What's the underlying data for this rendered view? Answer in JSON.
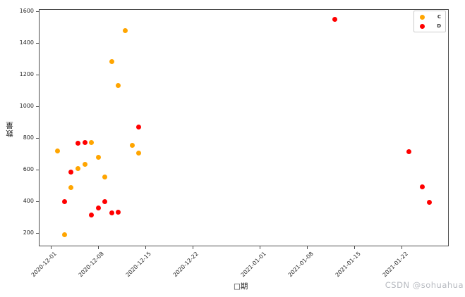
{
  "watermark": "CSDN @sohuahua",
  "chart_data": {
    "type": "scatter",
    "title": "",
    "xlabel": "□期",
    "ylabel": "数量",
    "grid": false,
    "legend_position": "upper right",
    "marker": "circle",
    "x_ticks": [
      "2020-12-01",
      "2020-12-08",
      "2020-12-15",
      "2020-12-22",
      "2021-01-01",
      "2021-01-08",
      "2021-01-15",
      "2021-01-22"
    ],
    "y_ticks": [
      200,
      400,
      600,
      800,
      1000,
      1200,
      1400,
      1600
    ],
    "ylim": [
      115,
      1615
    ],
    "xlim_dates": [
      "2020-11-29",
      "2021-01-29"
    ],
    "axis_color": "#4d4d4d",
    "series": [
      {
        "name": "C",
        "color": "#ffa500",
        "points": [
          [
            "2020-12-02",
            720
          ],
          [
            "2020-12-03",
            190
          ],
          [
            "2020-12-04",
            490
          ],
          [
            "2020-12-05",
            610
          ],
          [
            "2020-12-06",
            635
          ],
          [
            "2020-12-07",
            775
          ],
          [
            "2020-12-08",
            680
          ],
          [
            "2020-12-09",
            555
          ],
          [
            "2020-12-10",
            1285
          ],
          [
            "2020-12-11",
            1135
          ],
          [
            "2020-12-12",
            1480
          ],
          [
            "2020-12-13",
            755
          ],
          [
            "2020-12-14",
            705
          ]
        ]
      },
      {
        "name": "D",
        "color": "#ff0000",
        "points": [
          [
            "2020-12-03",
            400
          ],
          [
            "2020-12-04",
            585
          ],
          [
            "2020-12-05",
            770
          ],
          [
            "2020-12-06",
            775
          ],
          [
            "2020-12-07",
            315
          ],
          [
            "2020-12-08",
            360
          ],
          [
            "2020-12-09",
            400
          ],
          [
            "2020-12-10",
            330
          ],
          [
            "2020-12-11",
            335
          ],
          [
            "2020-12-14",
            870
          ],
          [
            "2021-01-12",
            1550
          ],
          [
            "2021-01-23",
            715
          ],
          [
            "2021-01-25",
            495
          ],
          [
            "2021-01-26",
            395
          ]
        ]
      }
    ]
  }
}
